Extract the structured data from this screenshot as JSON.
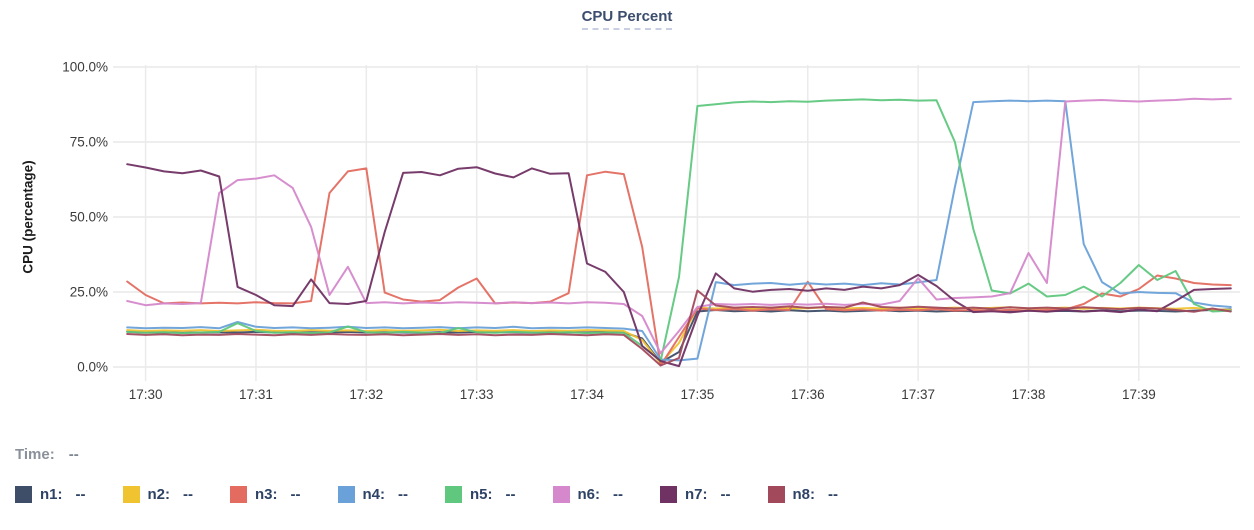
{
  "header": {
    "title": "CPU Percent"
  },
  "status": {
    "time_label": "Time:",
    "time_value": "--"
  },
  "chart_data": {
    "type": "line",
    "title": "CPU Percent",
    "xlabel": "",
    "ylabel": "CPU (percentage)",
    "ylim": [
      0,
      100
    ],
    "y_ticks": [
      "0.0%",
      "25.0%",
      "50.0%",
      "75.0%",
      "100.0%"
    ],
    "categories": [
      "17:30",
      "17:31",
      "17:32",
      "17:33",
      "17:34",
      "17:35",
      "17:36",
      "17:37",
      "17:38",
      "17:39"
    ],
    "x_tick_offsets_sec": [
      10,
      70,
      130,
      190,
      250,
      310,
      370,
      430,
      490,
      550
    ],
    "x_domain_sec": [
      -5,
      605
    ],
    "start_time": "17:29:50",
    "sample_interval_sec": 10,
    "grid": true,
    "legend_position": "bottom",
    "series": [
      {
        "name": "n1",
        "color": "#3e4e68",
        "values": [
          11.8,
          11.5,
          11.6,
          11.4,
          11.5,
          11.6,
          11.5,
          11.7,
          11.5,
          11.4,
          11.6,
          11.5,
          11.7,
          11.5,
          11.6,
          11.5,
          11.4,
          11.6,
          11.5,
          11.7,
          11.5,
          11.6,
          11.4,
          11.5,
          11.6,
          11.5,
          11.7,
          11.5,
          9.5,
          1.5,
          5,
          18.5,
          19,
          18.6,
          18.8,
          18.5,
          18.9,
          18.6,
          18.8,
          18.5,
          18.7,
          18.9,
          18.6,
          18.8,
          18.5,
          18.7,
          18.6,
          18.9,
          18.5,
          18.8,
          18.6,
          18.7,
          18.5,
          18.9,
          18.6,
          18.8,
          18.7,
          18.5,
          18.8,
          19,
          19.2
        ]
      },
      {
        "name": "n2",
        "color": "#f0c330",
        "values": [
          12.3,
          12,
          12.2,
          12.1,
          12.3,
          12,
          12.2,
          12.4,
          12.1,
          12,
          12.3,
          12.1,
          12.2,
          12,
          12.3,
          12.1,
          12.2,
          12.4,
          12,
          12.2,
          12.1,
          12.3,
          12,
          12.2,
          12.1,
          12.3,
          12.2,
          12,
          9,
          1.2,
          8,
          19.8,
          19.5,
          19.7,
          19.4,
          19.8,
          19.5,
          19.6,
          19.9,
          19.5,
          19.7,
          19.4,
          19.8,
          19.5,
          19.6,
          19.8,
          19.5,
          19.7,
          19.9,
          19.5,
          19.6,
          19.8,
          19.4,
          19.7,
          19.5,
          19.8,
          19.6,
          19.4,
          19.7,
          19.2,
          19
        ]
      },
      {
        "name": "n3",
        "color": "#e36b60",
        "values": [
          28.5,
          24,
          21.2,
          21.5,
          21.2,
          21.4,
          21.2,
          21.6,
          21.3,
          21.2,
          22,
          58,
          65.2,
          66.2,
          24.8,
          22.5,
          21.8,
          22.3,
          26.5,
          29.5,
          21.2,
          21.5,
          21.3,
          21.8,
          24.6,
          63.9,
          65.1,
          64.3,
          40,
          0.5,
          10,
          19.5,
          19,
          19.3,
          18.8,
          19.2,
          19,
          28.4,
          19.3,
          18.9,
          19.2,
          18.8,
          19.1,
          18.9,
          19.3,
          18.8,
          19,
          18.7,
          19.1,
          18.8,
          19,
          19.2,
          21,
          24.5,
          23.5,
          26,
          30.5,
          29.5,
          28,
          27.5,
          27.3
        ]
      },
      {
        "name": "n4",
        "color": "#6aa1d8",
        "values": [
          13.2,
          12.9,
          13.1,
          13,
          13.3,
          12.9,
          15,
          13.4,
          13,
          13.2,
          12.9,
          13.1,
          13.4,
          13,
          13.2,
          12.9,
          13.1,
          13.3,
          12.9,
          13.2,
          13,
          13.4,
          12.9,
          13.1,
          13,
          13.2,
          13,
          12.8,
          12,
          2.5,
          2.2,
          2.8,
          28.3,
          27.3,
          27.8,
          28,
          27.4,
          27.9,
          27.5,
          27.8,
          27.3,
          27.9,
          27.5,
          28.2,
          29,
          60,
          88.3,
          88.6,
          88.8,
          88.6,
          88.8,
          88.6,
          41,
          28.3,
          24.5,
          25,
          24.7,
          24.6,
          21.5,
          20.5,
          20
        ]
      },
      {
        "name": "n5",
        "color": "#5fc77e",
        "values": [
          11.7,
          11.4,
          11.6,
          11.3,
          11.5,
          11.7,
          14.6,
          12,
          11.4,
          11.6,
          11.3,
          11.5,
          13.5,
          11.6,
          11.4,
          11.7,
          11.5,
          11.3,
          13,
          11.6,
          11.4,
          11.7,
          11.5,
          11.4,
          11.6,
          11.3,
          11.5,
          11.4,
          7,
          2,
          30,
          87,
          87.6,
          88.2,
          88.5,
          88.3,
          88.6,
          88.4,
          88.8,
          89,
          89.2,
          88.9,
          89.1,
          88.8,
          88.9,
          75,
          46,
          25.5,
          24.5,
          27.8,
          23.5,
          24,
          26.8,
          23.5,
          28,
          34,
          29,
          32,
          21,
          18.5,
          18.8
        ]
      },
      {
        "name": "n6",
        "color": "#d588cb",
        "values": [
          22,
          20.6,
          21.2,
          21,
          21.3,
          58,
          62.3,
          62.8,
          63.9,
          59.7,
          46.7,
          24,
          33.4,
          21.3,
          21.6,
          21.2,
          21.5,
          21.3,
          21.6,
          21.4,
          21.2,
          21.6,
          21.3,
          21.5,
          21.2,
          21.6,
          21.4,
          21,
          17,
          4.6,
          12,
          20,
          21,
          20.8,
          21,
          20.7,
          21,
          20.8,
          21.1,
          20.7,
          21,
          20.8,
          22,
          29.6,
          22.5,
          23,
          23.2,
          23.5,
          24.6,
          38,
          28,
          88.5,
          88.8,
          89,
          88.7,
          88.5,
          88.8,
          89,
          89.4,
          89.2,
          89.4
        ]
      },
      {
        "name": "n7",
        "color": "#703263",
        "values": [
          67.6,
          66.5,
          65.2,
          64.6,
          65.5,
          63.5,
          26.7,
          24,
          20.6,
          20.3,
          29.2,
          21.3,
          21,
          22,
          45,
          64.7,
          65,
          63.9,
          66.1,
          66.6,
          64.5,
          63.2,
          66.2,
          64.4,
          64.6,
          34.5,
          31.7,
          25,
          7,
          2,
          0.3,
          17,
          31.2,
          26.2,
          25.1,
          25.7,
          26,
          25.4,
          26.2,
          25.7,
          26.8,
          26.2,
          27.3,
          30.7,
          27,
          22,
          18.3,
          18.6,
          18.2,
          18.8,
          18.4,
          19,
          18.5,
          18.8,
          18.3,
          19.2,
          18.6,
          22,
          25.7,
          26,
          26.2
        ]
      },
      {
        "name": "n8",
        "color": "#a24a5c",
        "values": [
          11,
          10.7,
          10.9,
          10.6,
          10.8,
          10.7,
          11,
          10.8,
          10.6,
          10.9,
          10.7,
          11,
          10.8,
          10.7,
          10.9,
          10.6,
          10.8,
          11,
          10.7,
          10.9,
          10.6,
          10.8,
          10.7,
          11,
          10.8,
          10.6,
          10.9,
          10.7,
          6,
          0.5,
          3,
          25.5,
          20.5,
          19.8,
          20,
          19.8,
          20.2,
          19.7,
          20,
          19.8,
          21.5,
          20,
          19.7,
          20.1,
          19.8,
          19.5,
          19.8,
          19.4,
          19.9,
          19.6,
          19.8,
          19.5,
          19.9,
          19.6,
          19.3,
          19.7,
          19.5,
          19,
          18.4,
          19.5,
          18.5
        ]
      }
    ]
  },
  "legend": {
    "items": [
      {
        "label": "n1:",
        "value": "--",
        "color": "#3e4e68"
      },
      {
        "label": "n2:",
        "value": "--",
        "color": "#f0c330"
      },
      {
        "label": "n3:",
        "value": "--",
        "color": "#e36b60"
      },
      {
        "label": "n4:",
        "value": "--",
        "color": "#6aa1d8"
      },
      {
        "label": "n5:",
        "value": "--",
        "color": "#5fc77e"
      },
      {
        "label": "n6:",
        "value": "--",
        "color": "#d588cb"
      },
      {
        "label": "n7:",
        "value": "--",
        "color": "#703263"
      },
      {
        "label": "n8:",
        "value": "--",
        "color": "#a24a5c"
      }
    ]
  }
}
